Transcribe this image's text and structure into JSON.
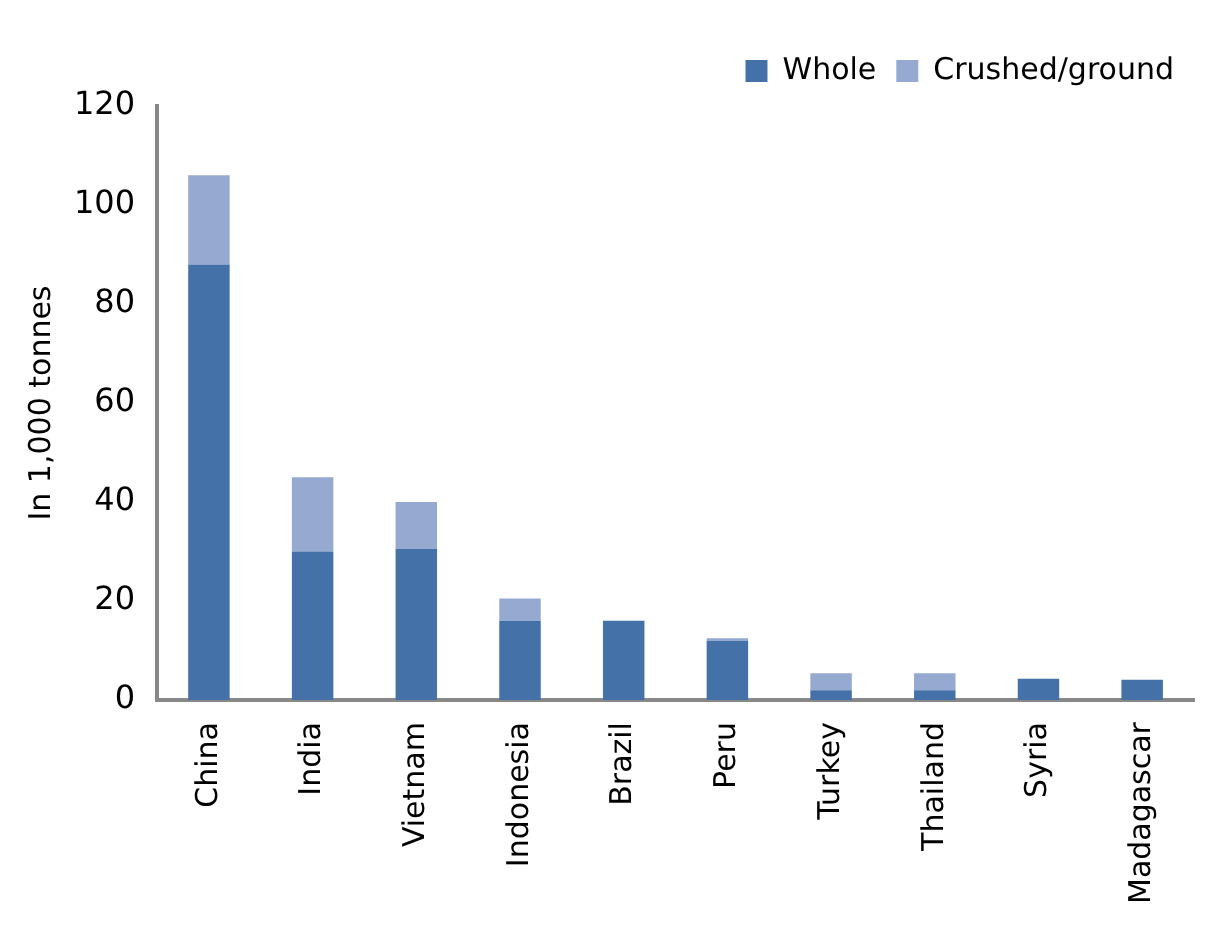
{
  "chart_data": {
    "type": "bar",
    "stacked": true,
    "ylabel": "In 1,000 tonnes",
    "categories": [
      "China",
      "India",
      "Vietnam",
      "Indonesia",
      "Brazil",
      "Peru",
      "Turkey",
      "Thailand",
      "Syria",
      "Madagascar"
    ],
    "series": [
      {
        "name": "Whole",
        "color": "#4472a8",
        "values": [
          88,
          30,
          30.5,
          16,
          16,
          12,
          2,
          2,
          4.3,
          4.1
        ]
      },
      {
        "name": "Crushed/ground",
        "color": "#95a9d1",
        "values": [
          18,
          15,
          9.5,
          4.5,
          0,
          0.5,
          3.4,
          3.4,
          0,
          0
        ]
      }
    ],
    "ylim": [
      0,
      120
    ],
    "yticks": [
      0,
      20,
      40,
      60,
      80,
      100,
      120
    ],
    "grid": false,
    "legend": "top right"
  }
}
